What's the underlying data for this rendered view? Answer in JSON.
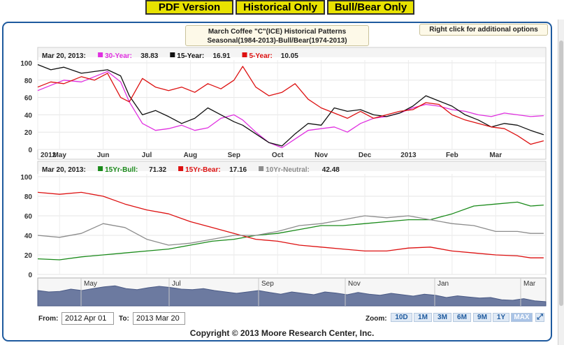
{
  "buttons": {
    "pdf": "PDF Version",
    "historical": "Historical Only",
    "bullbear": "Bull/Bear Only"
  },
  "title": {
    "line1": "March Coffee \"C\"(ICE) Historical Patterns",
    "line2": "Seasonal(1984-2013)-Bull/Bear(1974-2013)"
  },
  "right_click_hint": "Right click for additional options",
  "footer": {
    "from_label": "From:",
    "from_value": "2012 Apr 01",
    "to_label": "To:",
    "to_value": "2013 Mar 20",
    "zoom_label": "Zoom:",
    "zoom_options": [
      "10D",
      "1M",
      "3M",
      "6M",
      "9M",
      "1Y",
      "MAX"
    ],
    "zoom_selected": "MAX",
    "copyright": "Copyright © 2013 Moore Research Center, Inc."
  },
  "colors": {
    "frame": "#1e5a9e",
    "button_bg": "#e8e200",
    "thirty_year": "#e030e0",
    "fifteen_year": "#111111",
    "five_year": "#dd1111",
    "bull": "#1a8a1a",
    "bear": "#dd1111",
    "neutral": "#8c8c8c",
    "navigator": "#6c7aa0"
  },
  "chart_data": [
    {
      "type": "line",
      "title": "",
      "legend": {
        "date": "Mar 20, 2013:",
        "entries": [
          {
            "label": "30-Year:",
            "value": "38.83",
            "color": "#e030e0"
          },
          {
            "label": "15-Year:",
            "value": "16.91",
            "color": "#111111"
          },
          {
            "label": "5-Year:",
            "value": "10.05",
            "color": "#dd1111"
          }
        ]
      },
      "ylim": [
        0,
        100
      ],
      "yticks": [
        0,
        20,
        40,
        60,
        80,
        100
      ],
      "x_tick_labels": [
        "2012",
        "May",
        "Jun",
        "Jul",
        "Aug",
        "Sep",
        "Oct",
        "Nov",
        "Dec",
        "2013",
        "Feb",
        "Mar"
      ],
      "x_tick_positions": [
        0,
        0.5,
        1.5,
        2.5,
        3.5,
        4.5,
        5.5,
        6.5,
        7.5,
        8.5,
        9.5,
        10.5
      ],
      "x_range": [
        0,
        11.65
      ],
      "series": [
        {
          "name": "30-Year",
          "color": "#e030e0",
          "x": [
            0,
            0.3,
            0.6,
            1.0,
            1.3,
            1.6,
            1.9,
            2.1,
            2.4,
            2.7,
            3.0,
            3.3,
            3.6,
            3.9,
            4.2,
            4.5,
            4.7,
            5.0,
            5.3,
            5.6,
            5.9,
            6.2,
            6.5,
            6.8,
            7.1,
            7.4,
            7.7,
            8.0,
            8.3,
            8.6,
            8.9,
            9.2,
            9.5,
            9.8,
            10.1,
            10.4,
            10.7,
            11.0,
            11.3,
            11.6
          ],
          "values": [
            68,
            74,
            80,
            78,
            84,
            90,
            78,
            55,
            30,
            22,
            24,
            28,
            22,
            25,
            36,
            40,
            34,
            20,
            8,
            2,
            12,
            22,
            24,
            26,
            20,
            30,
            36,
            38,
            42,
            48,
            52,
            50,
            46,
            44,
            40,
            38,
            42,
            40,
            38,
            39
          ]
        },
        {
          "name": "15-Year",
          "color": "#111111",
          "x": [
            0,
            0.3,
            0.6,
            1.0,
            1.3,
            1.6,
            1.9,
            2.1,
            2.4,
            2.7,
            3.0,
            3.3,
            3.6,
            3.9,
            4.2,
            4.5,
            4.7,
            5.0,
            5.3,
            5.6,
            5.9,
            6.2,
            6.5,
            6.8,
            7.1,
            7.4,
            7.7,
            8.0,
            8.3,
            8.6,
            8.9,
            9.2,
            9.5,
            9.8,
            10.1,
            10.4,
            10.7,
            11.0,
            11.3,
            11.6
          ],
          "values": [
            98,
            92,
            95,
            88,
            90,
            92,
            85,
            62,
            40,
            45,
            38,
            30,
            36,
            48,
            40,
            32,
            28,
            18,
            8,
            4,
            18,
            30,
            28,
            48,
            44,
            46,
            40,
            38,
            42,
            50,
            62,
            56,
            50,
            40,
            34,
            26,
            30,
            28,
            22,
            17
          ]
        },
        {
          "name": "5-Year",
          "color": "#dd1111",
          "x": [
            0,
            0.3,
            0.6,
            1.0,
            1.3,
            1.6,
            1.9,
            2.1,
            2.4,
            2.7,
            3.0,
            3.3,
            3.6,
            3.9,
            4.2,
            4.5,
            4.7,
            5.0,
            5.3,
            5.6,
            5.9,
            6.2,
            6.5,
            6.8,
            7.1,
            7.4,
            7.7,
            8.0,
            8.3,
            8.6,
            8.9,
            9.2,
            9.5,
            9.8,
            10.1,
            10.4,
            10.7,
            11.0,
            11.3,
            11.6
          ],
          "values": [
            72,
            78,
            76,
            84,
            80,
            88,
            60,
            55,
            82,
            72,
            68,
            72,
            66,
            76,
            70,
            80,
            96,
            72,
            62,
            66,
            76,
            58,
            48,
            42,
            36,
            44,
            36,
            40,
            44,
            46,
            54,
            52,
            40,
            34,
            30,
            26,
            24,
            16,
            6,
            10
          ]
        }
      ]
    },
    {
      "type": "line",
      "title": "",
      "legend": {
        "date": "Mar 20, 2013:",
        "entries": [
          {
            "label": "15Yr-Bull:",
            "value": "71.32",
            "color": "#1a8a1a"
          },
          {
            "label": "15Yr-Bear:",
            "value": "17.16",
            "color": "#dd1111"
          },
          {
            "label": "10Yr-Neutral:",
            "value": "42.48",
            "color": "#8c8c8c"
          }
        ]
      },
      "ylim": [
        0,
        100
      ],
      "yticks": [
        0,
        20,
        40,
        60,
        80,
        100
      ],
      "x_range": [
        0,
        11.65
      ],
      "series": [
        {
          "name": "15Yr-Bull",
          "color": "#1a8a1a",
          "x": [
            0,
            0.5,
            1.0,
            1.5,
            2.0,
            2.5,
            3.0,
            3.5,
            4.0,
            4.5,
            5.0,
            5.5,
            6.0,
            6.5,
            7.0,
            7.5,
            8.0,
            8.5,
            9.0,
            9.5,
            10.0,
            10.5,
            11.0,
            11.3,
            11.6
          ],
          "values": [
            16,
            15,
            18,
            20,
            22,
            24,
            26,
            30,
            34,
            36,
            40,
            42,
            46,
            50,
            50,
            52,
            54,
            56,
            56,
            62,
            70,
            72,
            74,
            70,
            71
          ]
        },
        {
          "name": "15Yr-Bear",
          "color": "#dd1111",
          "x": [
            0,
            0.5,
            1.0,
            1.5,
            2.0,
            2.5,
            3.0,
            3.5,
            4.0,
            4.5,
            5.0,
            5.5,
            6.0,
            6.5,
            7.0,
            7.5,
            8.0,
            8.5,
            9.0,
            9.5,
            10.0,
            10.5,
            11.0,
            11.3,
            11.6
          ],
          "values": [
            84,
            82,
            84,
            80,
            72,
            66,
            62,
            54,
            48,
            42,
            36,
            34,
            30,
            28,
            26,
            24,
            24,
            27,
            28,
            24,
            22,
            20,
            19,
            17,
            17
          ]
        },
        {
          "name": "10Yr-Neutral",
          "color": "#8c8c8c",
          "x": [
            0,
            0.5,
            1.0,
            1.5,
            2.0,
            2.5,
            3.0,
            3.5,
            4.0,
            4.5,
            5.0,
            5.5,
            6.0,
            6.5,
            7.0,
            7.5,
            8.0,
            8.5,
            9.0,
            9.5,
            10.0,
            10.5,
            11.0,
            11.3,
            11.6
          ],
          "values": [
            40,
            38,
            42,
            52,
            48,
            36,
            30,
            32,
            36,
            40,
            40,
            44,
            50,
            52,
            56,
            60,
            58,
            60,
            56,
            52,
            50,
            44,
            44,
            42,
            42
          ]
        }
      ]
    }
  ],
  "navigator": {
    "labels": [
      "May",
      "Jul",
      "Sep",
      "Nov",
      "Jan",
      "Mar"
    ]
  }
}
